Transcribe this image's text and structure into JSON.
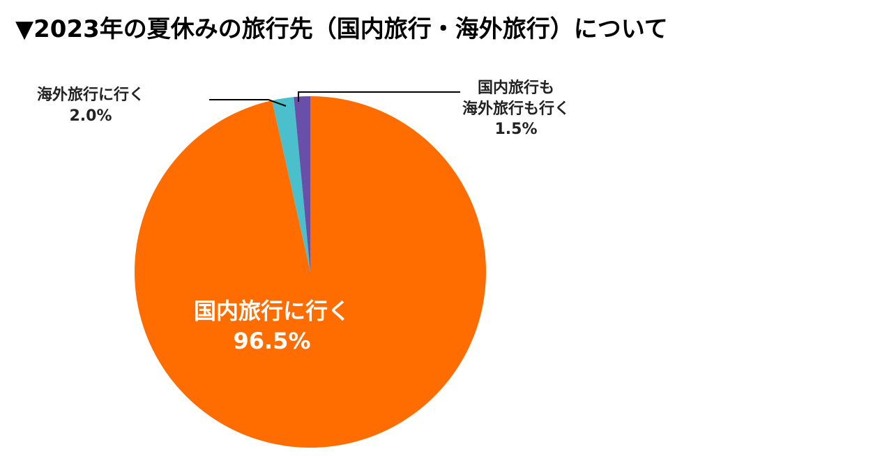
{
  "chart_data": {
    "type": "pie",
    "title": "▼2023年の夏休みの旅行先（国内旅行・海外旅行）について",
    "categories": [
      "国内旅行に行く",
      "海外旅行に行く",
      "国内旅行も\n海外旅行も行く"
    ],
    "values": [
      96.5,
      2.0,
      1.5
    ],
    "value_labels": [
      "96.5%",
      "2.0%",
      "1.5%"
    ],
    "colors": [
      "#ff6d00",
      "#4bbfcb",
      "#6a4fa8"
    ]
  }
}
